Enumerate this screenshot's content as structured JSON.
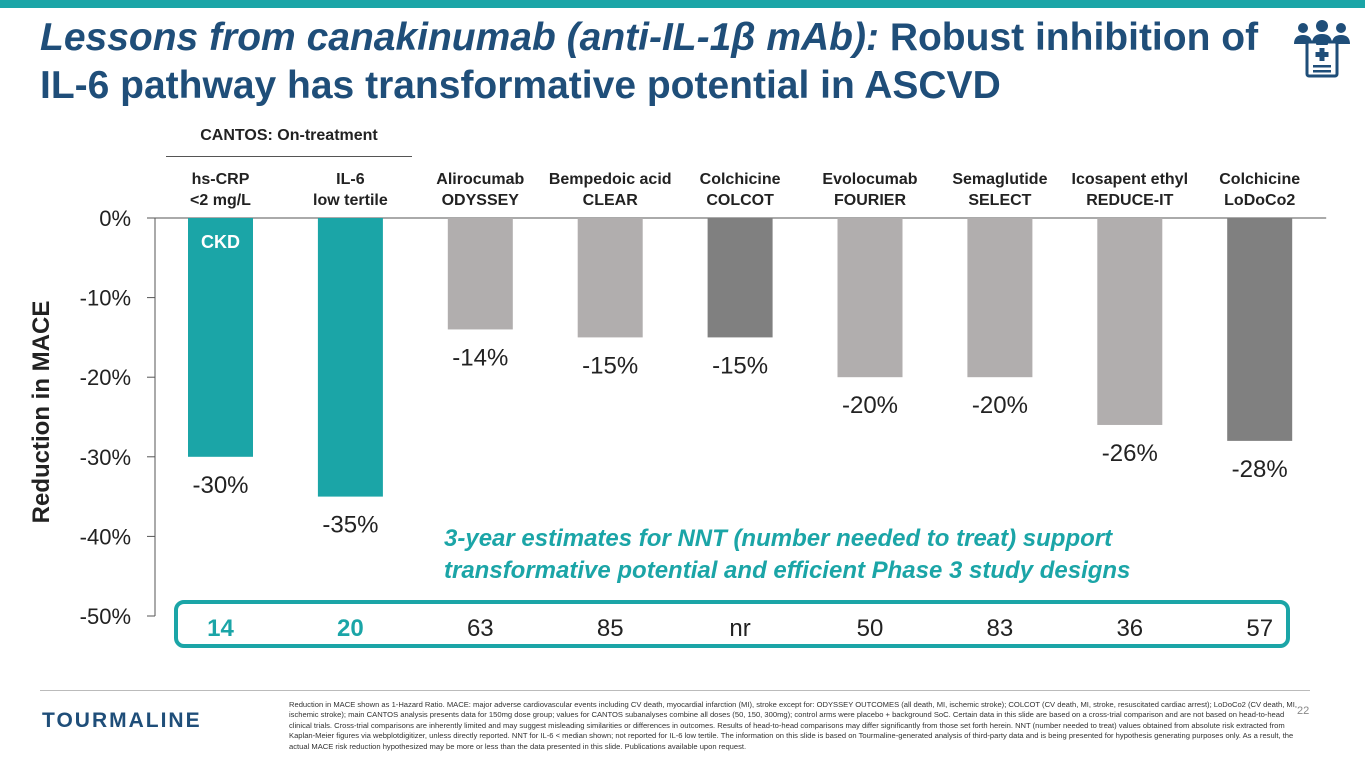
{
  "slide": {
    "title_italic": "Lessons from canakinumab (anti-IL-1β mAb):",
    "title_rest": " Robust inhibition of IL-6 pathway has transformative potential in ASCVD",
    "header_icon": "medical-team-icon",
    "cantos_label": "CANTOS: On-treatment",
    "nnt_note": "3-year estimates for NNT (number needed to treat) support transformative potential and efficient Phase 3 study designs",
    "logo_text": "TOURMALINE",
    "footnote": "Reduction in MACE shown as 1-Hazard Ratio. MACE: major adverse cardiovascular events including CV death, myocardial infarction (MI), stroke except for: ODYSSEY OUTCOMES (all death, MI, ischemic stroke); COLCOT (CV death, MI, stroke, resuscitated cardiac arrest); LoDoCo2 (CV death, MI, ischemic stroke); main CANTOS analysis presents data for 150mg dose group; values for CANTOS subanalyses combine all doses (50, 150, 300mg); control arms were placebo + background SoC. Certain data in this slide are based on a cross-trial comparison and are not based on head-to-head clinical trials. Cross-trial comparisons are inherently limited and may suggest misleading similarities or differences in outcomes. Results of head-to-head comparisons may differ significantly from those set forth herein. NNT (number needed to treat) values obtained from absolute risk extracted from Kaplan-Meier figures via webplotdigitizer, unless directly reported. NNT for IL-6 < median shown; not reported for IL-6 low tertile. The information on this slide is based on Tourmaline-generated analysis of third-party data and is being presented for hypothesis generating purposes only. As a result, the actual MACE risk reduction hypothesized may be more or less than the data presented in this slide. Publications available upon request.",
    "page_number": "22"
  },
  "colors": {
    "accent": "#1ba5a7",
    "title": "#1f4e79",
    "bar_light": "#b1aeae",
    "bar_dark": "#808080"
  },
  "chart_data": {
    "type": "bar",
    "title": "",
    "xlabel": "",
    "ylabel": "Reduction in MACE",
    "ylim": [
      -50,
      0
    ],
    "yticks": [
      0,
      -10,
      -20,
      -30,
      -40,
      -50
    ],
    "ytick_labels": [
      "0%",
      "-10%",
      "-20%",
      "-30%",
      "-40%",
      "-50%"
    ],
    "categories": [
      [
        "hs-CRP",
        "<2 mg/L"
      ],
      [
        "IL-6",
        "low tertile"
      ],
      [
        "Alirocumab",
        "ODYSSEY"
      ],
      [
        "Bempedoic acid",
        "CLEAR"
      ],
      [
        "Colchicine",
        "COLCOT"
      ],
      [
        "Evolocumab",
        "FOURIER"
      ],
      [
        "Semaglutide",
        "SELECT"
      ],
      [
        "Icosapent ethyl",
        "REDUCE-IT"
      ],
      [
        "Colchicine",
        "LoDoCo2"
      ]
    ],
    "values": [
      -30,
      -35,
      -14,
      -15,
      -15,
      -20,
      -20,
      -26,
      -28
    ],
    "value_labels": [
      "-30%",
      "-35%",
      "-14%",
      "-15%",
      "-15%",
      "-20%",
      "-20%",
      "-26%",
      "-28%"
    ],
    "bar_colors": [
      "#1ba5a7",
      "#1ba5a7",
      "#b1aeae",
      "#b1aeae",
      "#808080",
      "#b1aeae",
      "#b1aeae",
      "#b1aeae",
      "#808080"
    ],
    "bar_annotation": {
      "index": 0,
      "text": "CKD"
    },
    "nnt": [
      "14",
      "20",
      "63",
      "85",
      "nr",
      "50",
      "83",
      "36",
      "57"
    ],
    "nnt_highlight": [
      true,
      true,
      false,
      false,
      false,
      false,
      false,
      false,
      false
    ]
  }
}
